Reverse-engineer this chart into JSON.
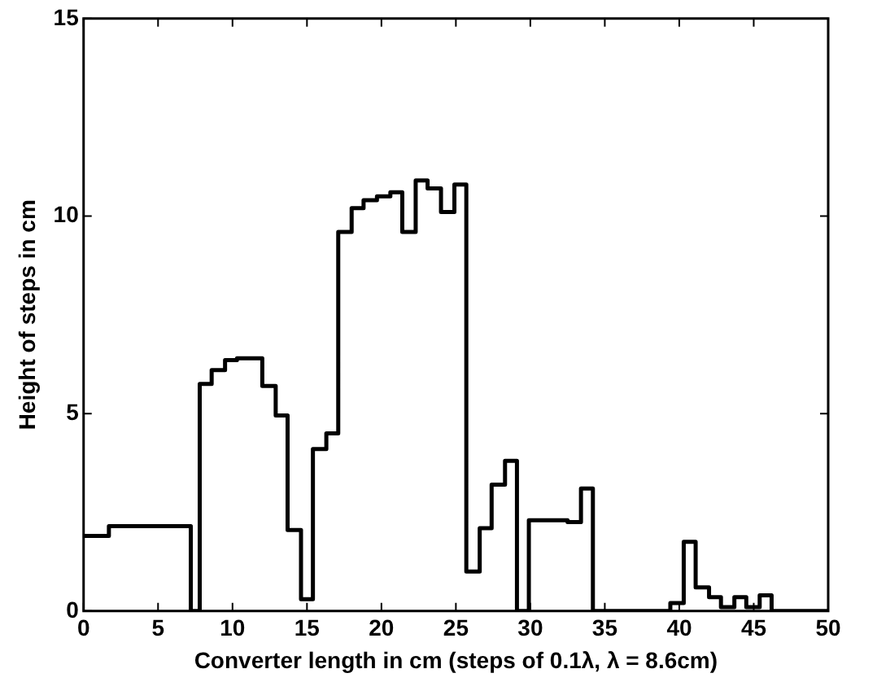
{
  "chart_data": {
    "type": "step",
    "xlabel": "Converter length in cm (steps of 0.1λ, λ = 8.6cm)",
    "ylabel": "Height of steps in cm",
    "x": [
      0,
      1.7,
      7.2,
      7.8,
      8.6,
      9.5,
      10.3,
      12.0,
      12.9,
      13.7,
      14.6,
      15.4,
      16.3,
      17.1,
      18.0,
      18.8,
      19.7,
      20.6,
      21.4,
      22.3,
      23.1,
      24.0,
      24.9,
      25.7,
      26.6,
      27.4,
      28.3,
      29.1,
      29.9,
      32.5,
      33.4,
      34.2,
      39.4,
      40.3,
      41.1,
      42.0,
      42.8,
      43.7,
      44.5,
      45.4,
      46.2,
      50
    ],
    "values": [
      1.9,
      2.15,
      0,
      5.75,
      6.1,
      6.35,
      6.4,
      5.7,
      4.95,
      2.05,
      0.3,
      4.1,
      4.5,
      9.6,
      10.2,
      10.4,
      10.5,
      10.6,
      9.6,
      10.9,
      10.7,
      10.1,
      10.8,
      1.0,
      2.1,
      3.2,
      3.8,
      0,
      2.3,
      2.25,
      3.1,
      0,
      0.2,
      1.75,
      0.6,
      0.35,
      0.1,
      0.35,
      0.1,
      0.4,
      0,
      0
    ],
    "color": "#000000",
    "xlim": [
      0,
      50
    ],
    "ylim": [
      0,
      15
    ],
    "xticks": [
      0,
      5,
      10,
      15,
      20,
      25,
      30,
      35,
      40,
      45,
      50
    ],
    "yticks": [
      0,
      5,
      10,
      15
    ],
    "grid": false,
    "legend": false,
    "marker": "none",
    "line_style": "solid"
  }
}
